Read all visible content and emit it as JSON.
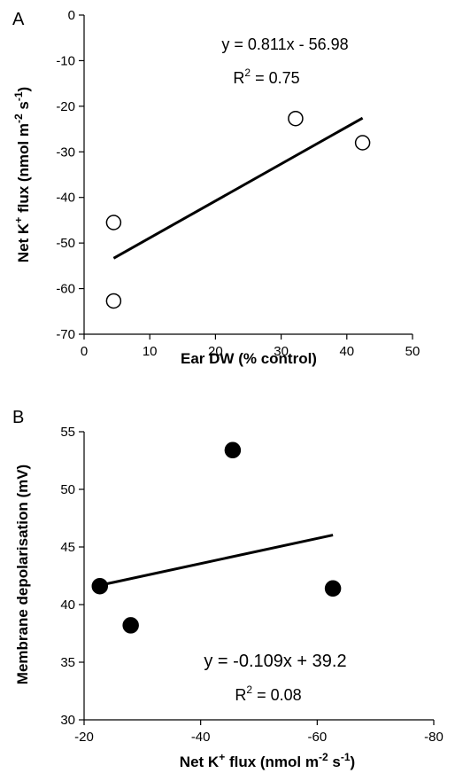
{
  "chart_data": [
    {
      "panel_label": "A",
      "type": "scatter",
      "xlabel": "Ear DW (% control)",
      "ylabel": {
        "pre": "Net K",
        "sup1": "+",
        "mid": " flux (nmol m",
        "sup2": "-2",
        "mid2": " s",
        "sup3": "-1",
        "post": ")"
      },
      "xlim": [
        0,
        50
      ],
      "ylim": [
        -70,
        0
      ],
      "xticks": [
        0,
        10,
        20,
        30,
        40,
        50
      ],
      "yticks": [
        0,
        -10,
        -20,
        -30,
        -40,
        -50,
        -60,
        -70
      ],
      "points": [
        {
          "x": 4.5,
          "y": -45.5
        },
        {
          "x": 4.5,
          "y": -62.7
        },
        {
          "x": 32.2,
          "y": -22.7
        },
        {
          "x": 42.4,
          "y": -28.0
        }
      ],
      "marker": "open-circle",
      "trendline": {
        "slope": 0.811,
        "intercept": -56.98,
        "x_start": 4.5,
        "x_end": 42.4
      },
      "equation": "y = 0.811x - 56.98",
      "r2": {
        "pre": "R",
        "sup": "2",
        "post": " = 0.75"
      }
    },
    {
      "panel_label": "B",
      "type": "scatter",
      "xlabel": {
        "pre": "Net K",
        "sup1": "+",
        "mid": " flux (nmol m",
        "sup2": "-2",
        "mid2": " s",
        "sup3": "-1",
        "post": ")"
      },
      "ylabel": "Membrane depolarisation (mV)",
      "xlim": [
        -20,
        -80
      ],
      "ylim": [
        30,
        55
      ],
      "xticks": [
        -20,
        -40,
        -60,
        -80
      ],
      "yticks": [
        30,
        35,
        40,
        45,
        50,
        55
      ],
      "points": [
        {
          "x": -22.7,
          "y": 41.6
        },
        {
          "x": -28.0,
          "y": 38.2
        },
        {
          "x": -45.5,
          "y": 53.4
        },
        {
          "x": -62.7,
          "y": 41.4
        }
      ],
      "marker": "filled-circle",
      "trendline": {
        "slope": -0.109,
        "intercept": 39.2,
        "x_start": -22.7,
        "x_end": -62.7
      },
      "equation": "y = -0.109x + 39.2",
      "r2": {
        "pre": "R",
        "sup": "2",
        "post": " = 0.08"
      }
    }
  ]
}
